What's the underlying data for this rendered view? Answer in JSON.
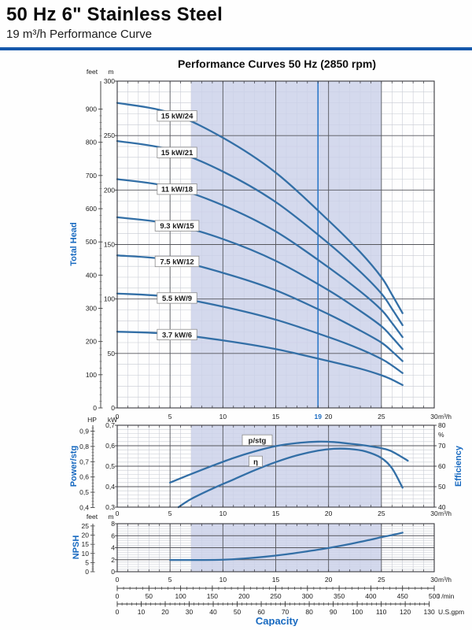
{
  "header": {
    "title": "50 Hz 6\" Stainless Steel",
    "subtitle": "19 m³/h Performance Curve"
  },
  "chart_data": {
    "type": "line",
    "title": "Performance Curves 50 Hz (2850 rpm)",
    "x_axis": {
      "unit": "m³/h",
      "min": 0,
      "max": 30,
      "major_ticks": [
        0,
        5,
        10,
        15,
        20,
        25,
        30
      ],
      "duty_point": {
        "value": 19,
        "label": "19"
      },
      "operating_band": [
        7,
        25
      ]
    },
    "head_chart": {
      "axis_title": "Total Head",
      "m_axis": {
        "unit": "m",
        "min": 0,
        "max": 300,
        "tick_values": [
          300,
          250,
          200,
          150,
          100,
          50,
          0
        ]
      },
      "feet_axis": {
        "unit": "feet",
        "tick_values": [
          900,
          800,
          700,
          600,
          500,
          400,
          300,
          200,
          100,
          0
        ]
      },
      "series": [
        {
          "label": "15 kW/24",
          "points": [
            [
              0,
              280
            ],
            [
              5,
              271
            ],
            [
              10,
              248
            ],
            [
              15,
              216
            ],
            [
              20,
              172
            ],
            [
              23,
              143
            ],
            [
              25,
              120
            ],
            [
              26,
              104
            ],
            [
              27,
              87
            ]
          ]
        },
        {
          "label": "15 kW/21",
          "points": [
            [
              0,
              245
            ],
            [
              5,
              237
            ],
            [
              10,
              217
            ],
            [
              15,
              189
            ],
            [
              20,
              151
            ],
            [
              23,
              125
            ],
            [
              25,
              105
            ],
            [
              26,
              91
            ],
            [
              27,
              76
            ]
          ]
        },
        {
          "label": "11 kW/18",
          "points": [
            [
              0,
              210
            ],
            [
              5,
              203
            ],
            [
              10,
              186
            ],
            [
              15,
              162
            ],
            [
              20,
              129
            ],
            [
              23,
              107
            ],
            [
              25,
              90
            ],
            [
              26,
              78
            ],
            [
              27,
              65
            ]
          ]
        },
        {
          "label": "9.3 kW/15",
          "points": [
            [
              0,
              175
            ],
            [
              5,
              169
            ],
            [
              10,
              155
            ],
            [
              15,
              135
            ],
            [
              20,
              108
            ],
            [
              23,
              89
            ],
            [
              25,
              75
            ],
            [
              26,
              65
            ],
            [
              27,
              54
            ]
          ]
        },
        {
          "label": "7.5 kW/12",
          "points": [
            [
              0,
              140
            ],
            [
              5,
              136
            ],
            [
              10,
              124
            ],
            [
              15,
              108
            ],
            [
              20,
              86
            ],
            [
              23,
              71
            ],
            [
              25,
              60
            ],
            [
              26,
              52
            ],
            [
              27,
              43
            ]
          ]
        },
        {
          "label": "5.5 kW/9",
          "points": [
            [
              0,
              105
            ],
            [
              5,
              102
            ],
            [
              10,
              93
            ],
            [
              15,
              81
            ],
            [
              20,
              65
            ],
            [
              23,
              54
            ],
            [
              25,
              45
            ],
            [
              26,
              39
            ],
            [
              27,
              32
            ]
          ]
        },
        {
          "label": "3.7 kW/6",
          "points": [
            [
              0,
              70
            ],
            [
              5,
              68
            ],
            [
              10,
              62
            ],
            [
              15,
              54
            ],
            [
              20,
              43
            ],
            [
              23,
              36
            ],
            [
              25,
              30
            ],
            [
              26,
              26
            ],
            [
              27,
              21
            ]
          ]
        }
      ]
    },
    "power_chart": {
      "axis_title": "Power/stg",
      "kw_axis": {
        "unit": "kW",
        "min": 0.3,
        "max": 0.7,
        "tick_values": [
          0.7,
          0.6,
          0.5,
          0.4,
          0.3
        ],
        "tick_labels": [
          "0,7",
          "0,6",
          "0,5",
          "0,4",
          "0,3"
        ]
      },
      "hp_axis": {
        "unit": "HP",
        "tick_values": [
          0.9,
          0.8,
          0.7,
          0.6,
          0.5,
          0.4
        ],
        "tick_labels": [
          "0,9",
          "0,8",
          "0,7",
          "0,6",
          "0,5",
          "0,4"
        ]
      },
      "eff_axis": {
        "title": "Efficiency",
        "unit": "%",
        "min": 40,
        "max": 80,
        "tick_values": [
          80,
          70,
          60,
          50,
          40
        ]
      },
      "series": [
        {
          "label": "p/stg",
          "axis": "kw",
          "points": [
            [
              5,
              0.42
            ],
            [
              7,
              0.462
            ],
            [
              9,
              0.502
            ],
            [
              11,
              0.54
            ],
            [
              13,
              0.572
            ],
            [
              15,
              0.598
            ],
            [
              17,
              0.613
            ],
            [
              19,
              0.62
            ],
            [
              20.5,
              0.618
            ],
            [
              22,
              0.61
            ],
            [
              23.5,
              0.601
            ],
            [
              25,
              0.588
            ],
            [
              26,
              0.572
            ],
            [
              27.5,
              0.527
            ]
          ]
        },
        {
          "label": "η",
          "axis": "eff",
          "points": [
            [
              5.8,
              40
            ],
            [
              7,
              44
            ],
            [
              9,
              49
            ],
            [
              11,
              53.5
            ],
            [
              13,
              58
            ],
            [
              15,
              62
            ],
            [
              17,
              65.3
            ],
            [
              19,
              67.6
            ],
            [
              20.5,
              68.5
            ],
            [
              22,
              68.4
            ],
            [
              23.5,
              67.2
            ],
            [
              25,
              64
            ],
            [
              26,
              59
            ],
            [
              27,
              49.5
            ]
          ]
        }
      ]
    },
    "npsh_chart": {
      "axis_title": "NPSH",
      "m_axis": {
        "unit": "m",
        "min": 0,
        "max": 8,
        "tick_values": [
          8,
          6,
          4,
          2,
          0
        ]
      },
      "feet_axis": {
        "unit": "feet",
        "tick_values": [
          25,
          20,
          15,
          10,
          5,
          0
        ]
      },
      "series": [
        {
          "label": "NPSH",
          "points": [
            [
              5,
              1.95
            ],
            [
              8,
              1.95
            ],
            [
              10,
              2.0
            ],
            [
              12,
              2.2
            ],
            [
              14,
              2.5
            ],
            [
              16,
              2.9
            ],
            [
              18,
              3.4
            ],
            [
              20,
              3.95
            ],
            [
              22,
              4.6
            ],
            [
              24,
              5.35
            ],
            [
              25,
              5.75
            ],
            [
              26,
              6.1
            ],
            [
              27,
              6.5
            ]
          ]
        }
      ]
    },
    "capacity_scales": {
      "label": "Capacity",
      "lmin": {
        "unit": "l /min",
        "tick_values": [
          0,
          50,
          100,
          150,
          200,
          250,
          300,
          350,
          400,
          450,
          500
        ],
        "max": 500
      },
      "usgpm": {
        "unit": "U.S.gpm",
        "tick_values": [
          0,
          10,
          20,
          30,
          40,
          50,
          60,
          70,
          80,
          90,
          100,
          110,
          120,
          130
        ],
        "gpm_per_m3h": 4.4029
      }
    },
    "colors": {
      "curve": "#336fa6",
      "band": "#cbd1e9",
      "duty": "#2e78c8",
      "blue_text": "#1769c0",
      "rule": "#1558ab",
      "grid_major": "#55565c",
      "grid_minor": "#c6c9d2",
      "text": "#1a1a1a",
      "border": "#38383d"
    }
  }
}
